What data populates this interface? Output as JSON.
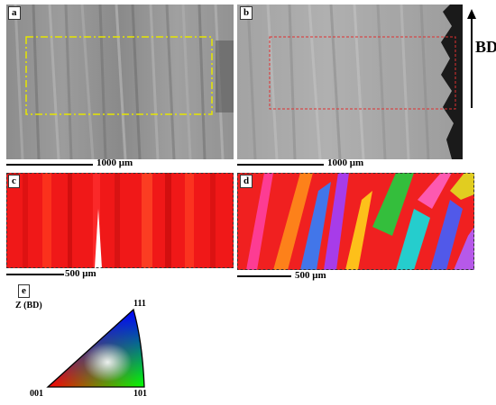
{
  "panels": {
    "a": {
      "label": "a"
    },
    "b": {
      "label": "b"
    },
    "c": {
      "label": "c"
    },
    "d": {
      "label": "d"
    },
    "e": {
      "label": "e"
    }
  },
  "scale_bars": {
    "a": "1000 μm",
    "b": "1000 μm",
    "c": "500 μm",
    "d": "500 μm"
  },
  "build_direction": {
    "label": "BD"
  },
  "ipf_legend": {
    "axis_label": "Z (BD)",
    "corner_001": "001",
    "corner_101": "101",
    "corner_111": "111"
  },
  "colors": {
    "roi_yellow": "#e6e600",
    "roi_red": "#e03030"
  }
}
